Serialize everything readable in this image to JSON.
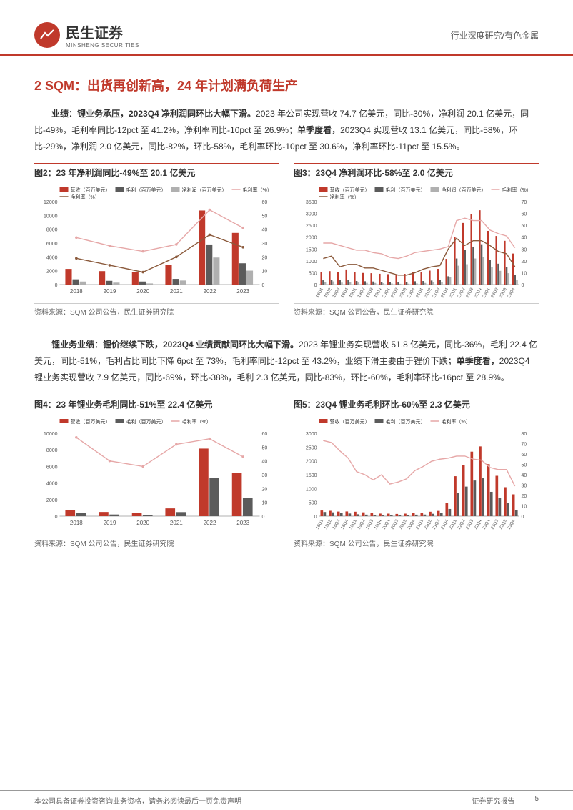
{
  "header": {
    "logo_cn": "民生证券",
    "logo_en": "MINSHENG SECURITIES",
    "right_text": "行业深度研究/有色金属"
  },
  "section_title": "2 SQM：出货再创新高，24 年计划满负荷生产",
  "para1_lead": "业绩：锂业务承压，2023Q4 净利润同环比大幅下滑。",
  "para1_body": "2023 年公司实现营收 74.7 亿美元，同比-30%，净利润 20.1 亿美元，同比-49%，毛利率同比-12pct 至 41.2%，净利率同比-10pct 至 26.9%；",
  "para1_mid": "单季度看，",
  "para1_tail": "2023Q4 实现营收 13.1 亿美元，同比-58%，环比-29%，净利润 2.0 亿美元，同比-82%，环比-58%，毛利率环比-10pct 至 30.6%，净利率环比-11pct 至 15.5%。",
  "para2_lead": "锂业务业绩：锂价继续下跌，2023Q4 业绩贡献同环比大幅下滑。",
  "para2_body": "2023 年锂业务实现营收 51.8 亿美元，同比-36%，毛利 22.4 亿美元，同比-51%，毛利占比同比下降 6pct 至 73%，毛利率同比-12pct 至 43.2%，业绩下滑主要由于锂价下跌；",
  "para2_mid": "单季度看，",
  "para2_tail": "2023Q4 锂业务实现营收 7.9 亿美元，同比-69%，环比-38%，毛利 2.3 亿美元，同比-83%，环比-60%，毛利率环比-16pct 至 28.9%。",
  "chart2": {
    "title": "图2：23 年净利润同比-49%至 20.1 亿美元",
    "source": "资料来源：SQM 公司公告，民生证券研究院",
    "legend": [
      "营收（百万美元）",
      "毛利（百万美元）",
      "净利润（百万美元）",
      "毛利率（%）",
      "净利率（%）"
    ],
    "categories": [
      "2018",
      "2019",
      "2020",
      "2021",
      "2022",
      "2023"
    ],
    "revenue": [
      2266,
      1944,
      1817,
      2862,
      10711,
      7468
    ],
    "gross": [
      760,
      540,
      440,
      820,
      5800,
      3080
    ],
    "net": [
      440,
      281,
      165,
      585,
      3906,
      2013
    ],
    "gm": [
      34,
      28,
      24,
      29,
      54,
      41
    ],
    "nm": [
      19,
      14,
      9,
      20,
      36,
      27
    ],
    "y1_max": 12000,
    "y1_step": 2000,
    "y2_max": 60,
    "y2_step": 10,
    "colors": {
      "revenue": "#c0392b",
      "gross": "#5b5b5b",
      "net": "#b0b0b0",
      "gm": "#e6a7a7",
      "nm": "#8b5a3c"
    }
  },
  "chart3": {
    "title": "图3：23Q4 净利润环比-58%至 2.0 亿美元",
    "source": "资料来源：SQM 公司公告，民生证券研究院",
    "legend": [
      "营收（百万美元）",
      "毛利（百万美元）",
      "净利润（百万美元）",
      "毛利率（%）",
      "净利率（%）"
    ],
    "categories": [
      "18Q1",
      "18Q2",
      "18Q3",
      "18Q4",
      "19Q1",
      "19Q2",
      "19Q3",
      "19Q4",
      "20Q1",
      "20Q2",
      "20Q3",
      "20Q4",
      "21Q1",
      "21Q2",
      "21Q3",
      "21Q4",
      "22Q1",
      "22Q2",
      "22Q3",
      "22Q4",
      "23Q1",
      "23Q2",
      "23Q3",
      "23Q4"
    ],
    "revenue": [
      519,
      567,
      543,
      637,
      519,
      490,
      480,
      455,
      440,
      407,
      452,
      518,
      528,
      588,
      662,
      1084,
      2020,
      2599,
      2958,
      3134,
      2264,
      2049,
      1846,
      1309
    ],
    "gross": [
      180,
      200,
      180,
      200,
      150,
      140,
      130,
      120,
      100,
      90,
      110,
      140,
      150,
      170,
      200,
      350,
      1100,
      1450,
      1600,
      1700,
      1050,
      880,
      750,
      400
    ],
    "net": [
      113,
      134,
      84,
      109,
      87,
      70,
      68,
      56,
      45,
      33,
      37,
      50,
      68,
      90,
      106,
      321,
      796,
      859,
      1100,
      1151,
      750,
      580,
      480,
      200
    ],
    "gm": [
      35,
      35,
      33,
      31,
      29,
      29,
      27,
      26,
      23,
      22,
      24,
      27,
      28,
      29,
      30,
      32,
      54,
      56,
      54,
      54,
      46,
      43,
      41,
      31
    ],
    "nm": [
      22,
      24,
      15,
      17,
      17,
      14,
      14,
      12,
      10,
      8,
      8,
      10,
      13,
      15,
      16,
      30,
      39,
      33,
      37,
      37,
      33,
      28,
      26,
      15
    ],
    "y1_max": 3500,
    "y1_step": 500,
    "y2_max": 70,
    "y2_step": 10,
    "colors": {
      "revenue": "#c0392b",
      "gross": "#5b5b5b",
      "net": "#b0b0b0",
      "gm": "#e6a7a7",
      "nm": "#8b5a3c"
    }
  },
  "chart4": {
    "title": "图4：23 年锂业务毛利同比-51%至 22.4 亿美元",
    "source": "资料来源：SQM 公司公告，民生证券研究院",
    "legend": [
      "营收（百万美元）",
      "毛利（百万美元）",
      "毛利率（%）"
    ],
    "categories": [
      "2018",
      "2019",
      "2020",
      "2021",
      "2022",
      "2023"
    ],
    "revenue": [
      735,
      505,
      384,
      936,
      8153,
      5180
    ],
    "gross": [
      420,
      200,
      140,
      490,
      4570,
      2240
    ],
    "gm": [
      57,
      40,
      36,
      52,
      56,
      43
    ],
    "y1_max": 10000,
    "y1_step": 2000,
    "y2_max": 60,
    "y2_step": 10,
    "colors": {
      "revenue": "#c0392b",
      "gross": "#5b5b5b",
      "gm": "#e6a7a7"
    }
  },
  "chart5": {
    "title": "图5：23Q4 锂业务毛利环比-60%至 2.3 亿美元",
    "source": "资料来源：SQM 公司公告，民生证券研究院",
    "legend": [
      "营收（百万美元）",
      "毛利（百万美元）",
      "毛利率（%）"
    ],
    "categories": [
      "18Q1",
      "18Q2",
      "18Q3",
      "18Q4",
      "19Q1",
      "19Q2",
      "19Q3",
      "19Q4",
      "20Q1",
      "20Q2",
      "20Q3",
      "20Q4",
      "21Q1",
      "21Q2",
      "21Q3",
      "21Q4",
      "22Q1",
      "22Q2",
      "22Q3",
      "22Q4",
      "23Q1",
      "23Q2",
      "23Q3",
      "23Q4"
    ],
    "revenue": [
      205,
      194,
      166,
      170,
      160,
      138,
      115,
      92,
      90,
      80,
      90,
      124,
      120,
      160,
      190,
      466,
      1446,
      1847,
      2335,
      2525,
      1882,
      1461,
      1048,
      789
    ],
    "gross": [
      150,
      138,
      105,
      95,
      68,
      55,
      40,
      37,
      28,
      26,
      32,
      54,
      58,
      85,
      105,
      260,
      840,
      1070,
      1290,
      1370,
      880,
      650,
      470,
      228
    ],
    "gm": [
      73,
      71,
      63,
      56,
      43,
      40,
      35,
      40,
      31,
      33,
      36,
      44,
      48,
      53,
      55,
      56,
      58,
      58,
      55,
      54,
      47,
      45,
      45,
      29
    ],
    "y1_max": 3000,
    "y1_step": 500,
    "y2_max": 80,
    "y2_step": 10,
    "colors": {
      "revenue": "#c0392b",
      "gross": "#5b5b5b",
      "gm": "#e6a7a7"
    }
  },
  "footer": {
    "left": "本公司具备证券投资咨询业务资格，请务必阅读最后一页免责声明",
    "right1": "证券研究报告",
    "right2": "5"
  }
}
